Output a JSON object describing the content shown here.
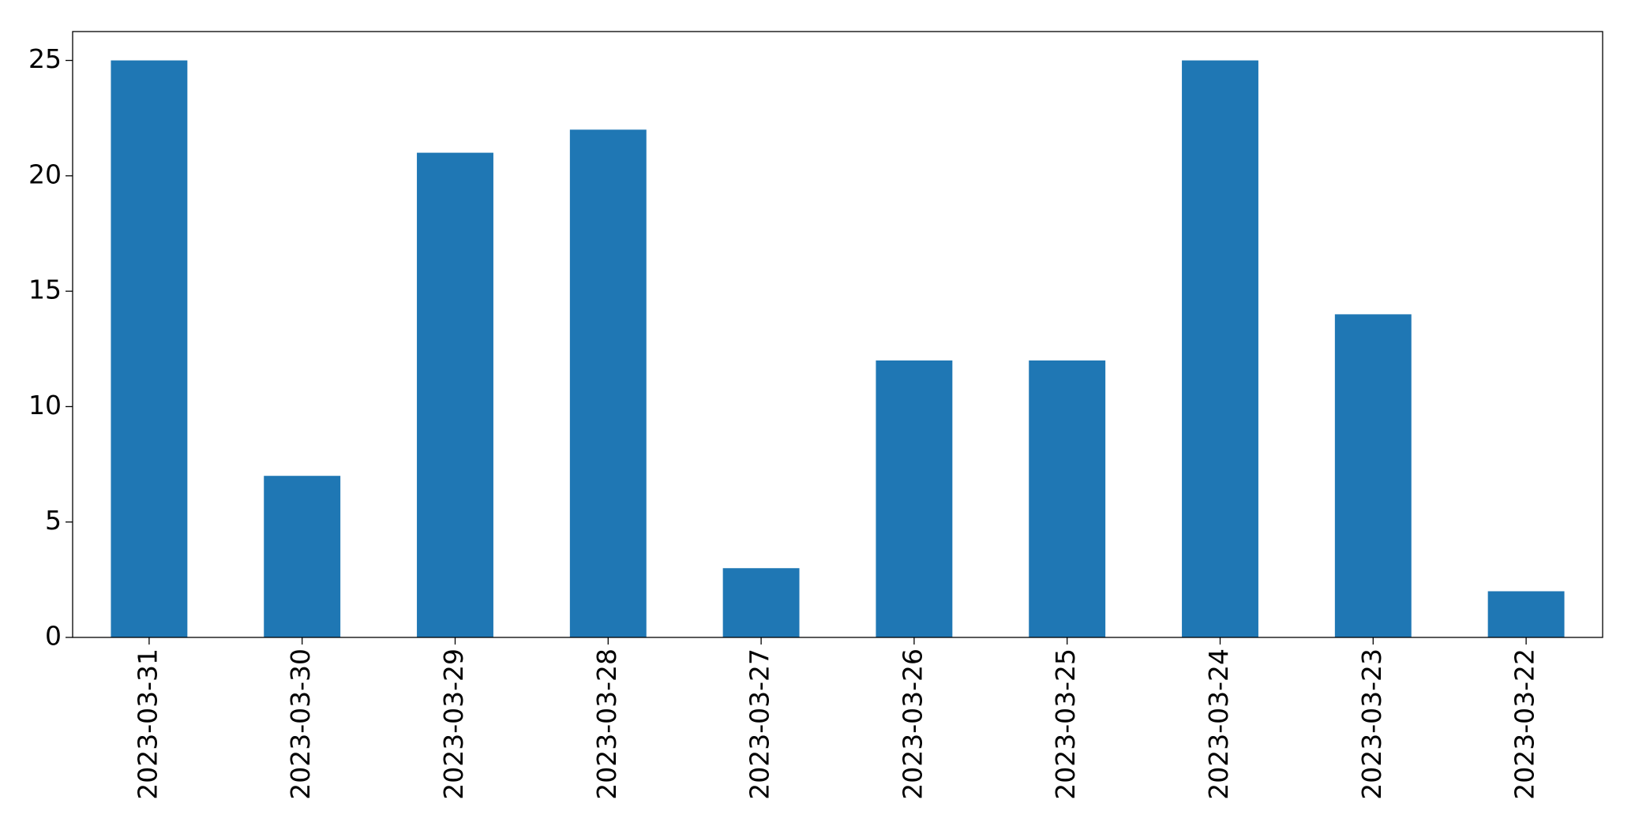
{
  "chart_data": {
    "type": "bar",
    "categories": [
      "2023-03-31",
      "2023-03-30",
      "2023-03-29",
      "2023-03-28",
      "2023-03-27",
      "2023-03-26",
      "2023-03-25",
      "2023-03-24",
      "2023-03-23",
      "2023-03-22"
    ],
    "values": [
      25,
      7,
      21,
      22,
      3,
      12,
      12,
      25,
      14,
      2
    ],
    "color": "#1f77b4",
    "ylim": [
      0,
      26.25
    ],
    "yticks": [
      0,
      5,
      10,
      15,
      20,
      25
    ],
    "grid": false
  }
}
